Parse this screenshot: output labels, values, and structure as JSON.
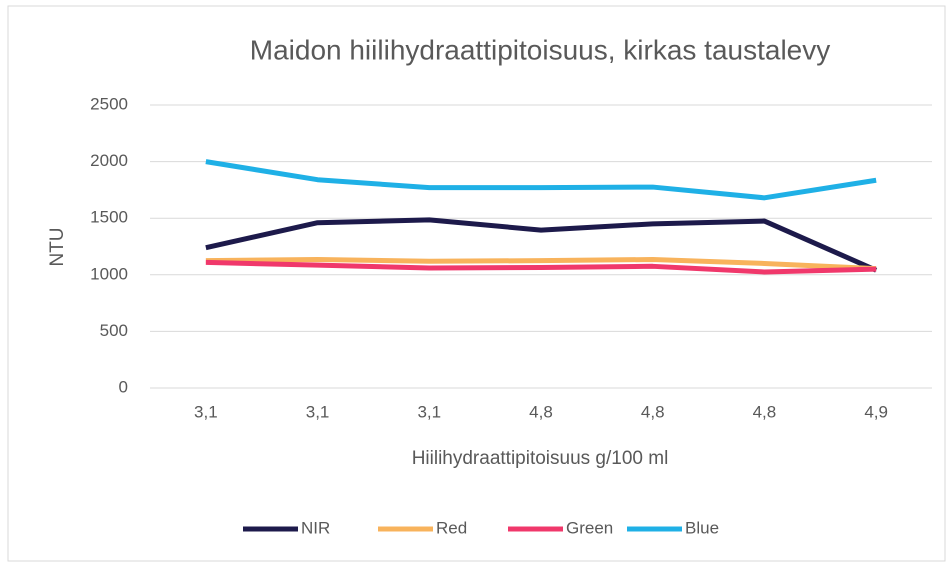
{
  "chart_data": {
    "type": "line",
    "title": "Maidon hiilihydraattipitoisuus, kirkas taustalevy",
    "x_label": "Hiilihydraattipitoisuus g/100 ml",
    "y_label": "NTU",
    "categories": [
      "3,1",
      "3,1",
      "3,1",
      "4,8",
      "4,8",
      "4,8",
      "4,9"
    ],
    "series": [
      {
        "name": "NIR",
        "color": "#1d1a4b",
        "values": [
          1240,
          1460,
          1485,
          1395,
          1450,
          1475,
          1040
        ]
      },
      {
        "name": "Red",
        "color": "#f8b35c",
        "values": [
          1125,
          1135,
          1120,
          1125,
          1135,
          1100,
          1055
        ]
      },
      {
        "name": "Green",
        "color": "#f0386b",
        "values": [
          1110,
          1085,
          1060,
          1065,
          1075,
          1025,
          1050
        ]
      },
      {
        "name": "Blue",
        "color": "#1fb0e6",
        "values": [
          2000,
          1840,
          1770,
          1770,
          1775,
          1680,
          1835
        ]
      }
    ],
    "ylim": [
      0,
      2500
    ],
    "yticks": [
      0,
      500,
      1000,
      1500,
      2000,
      2500
    ],
    "grid": true,
    "legend": "bottom"
  }
}
